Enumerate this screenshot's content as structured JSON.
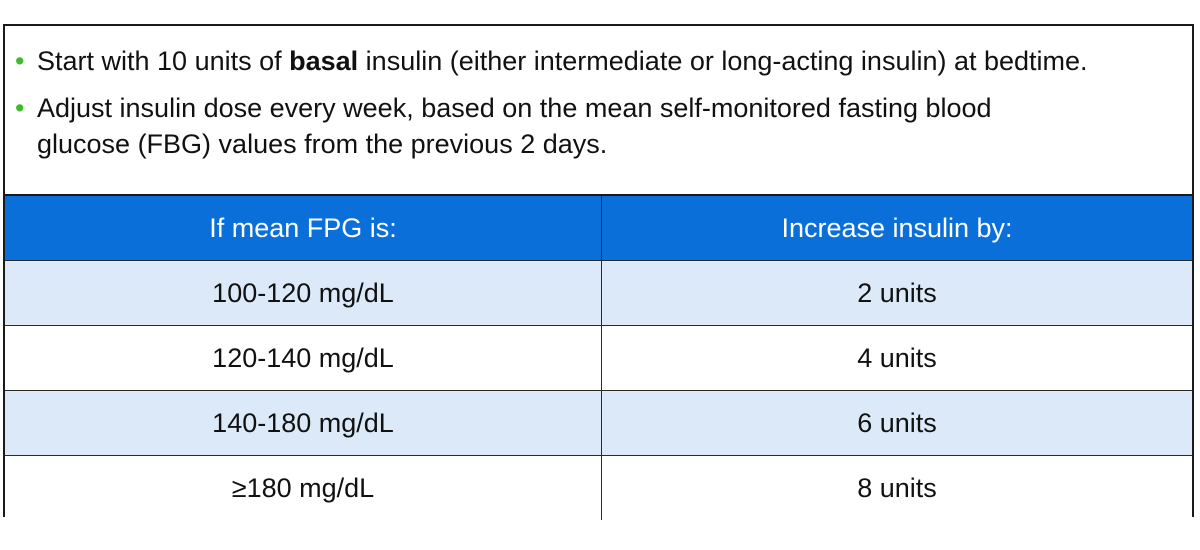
{
  "notes": {
    "item1": {
      "before": "Start with 10 units of ",
      "bold": "basal",
      "after": " insulin (either intermediate or long-acting insulin) at bedtime."
    },
    "item2": {
      "line1": "Adjust insulin dose every week, based on the mean self-monitored fasting blood",
      "line2": "glucose (FBG) values from the previous 2 days."
    },
    "bullet_color": "#3dbb2a"
  },
  "table": {
    "headers": [
      "If mean FPG is:",
      "Increase insulin by:"
    ],
    "header_color": "#0a6fd9",
    "shade_color": "#dbe9f8",
    "rows": [
      [
        "100-120 mg/dL",
        "2 units"
      ],
      [
        "120-140 mg/dL",
        "4 units"
      ],
      [
        "140-180 mg/dL",
        "6 units"
      ],
      [
        "≥180 mg/dL",
        "8 units"
      ]
    ]
  }
}
